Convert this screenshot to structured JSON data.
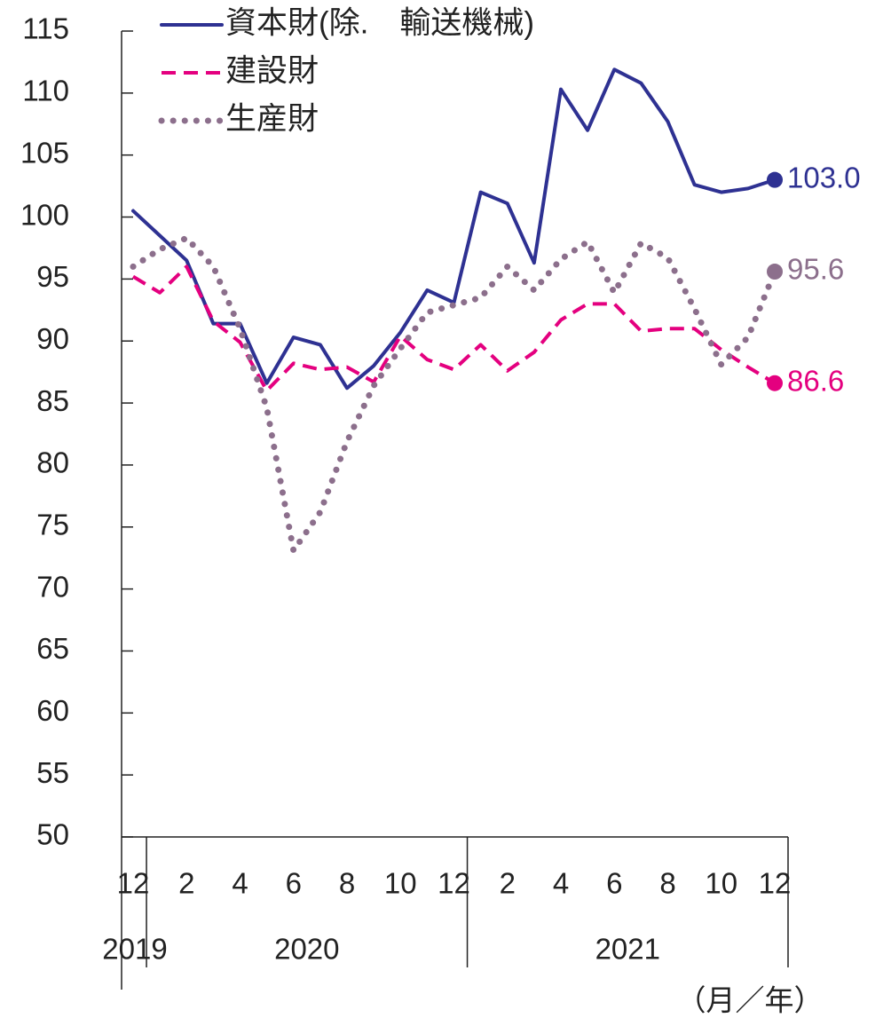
{
  "chart_data": {
    "type": "line",
    "categories": [
      "12",
      null,
      "2",
      null,
      "4",
      null,
      "6",
      null,
      "8",
      null,
      "10",
      null,
      "12",
      null,
      "2",
      null,
      "4",
      null,
      "6",
      null,
      "8",
      null,
      "10",
      null,
      "12"
    ],
    "year_labels": [
      "2019",
      "2020",
      "2021"
    ],
    "x_axis_label": "（月／年）",
    "ylim": [
      50,
      115
    ],
    "yticks": [
      50,
      55,
      60,
      65,
      70,
      75,
      80,
      85,
      90,
      95,
      100,
      105,
      110,
      115
    ],
    "legend": "top-left",
    "series": [
      {
        "name": "資本財(除.　輸送機械)",
        "color": "#2e3192",
        "style": "solid",
        "values": [
          100.5,
          98.5,
          96.5,
          91.4,
          91.4,
          86.6,
          90.3,
          89.7,
          86.2,
          88.0,
          90.7,
          94.1,
          93.1,
          102.0,
          101.1,
          96.3,
          110.3,
          107.0,
          111.9,
          110.8,
          107.7,
          102.6,
          102.0,
          102.3,
          103.0
        ],
        "value_labels": [
          null,
          null,
          null,
          null,
          null,
          null,
          null,
          null,
          null,
          null,
          null,
          null,
          null,
          null,
          null,
          null,
          null,
          null,
          null,
          null,
          null,
          null,
          null,
          null,
          "103.0"
        ]
      },
      {
        "name": "建設財",
        "color": "#e4007f",
        "style": "dashed",
        "values": [
          95.2,
          93.9,
          96.0,
          91.6,
          89.9,
          86.0,
          88.2,
          87.7,
          87.9,
          86.7,
          90.4,
          88.5,
          87.7,
          89.7,
          87.6,
          89.1,
          91.7,
          93.0,
          93.0,
          90.8,
          91.0,
          91.0,
          89.3,
          87.9,
          86.6
        ],
        "value_labels": [
          null,
          null,
          null,
          null,
          null,
          null,
          null,
          null,
          null,
          null,
          null,
          null,
          null,
          null,
          null,
          null,
          null,
          null,
          null,
          null,
          null,
          null,
          null,
          null,
          "86.6"
        ]
      },
      {
        "name": "生産財",
        "color": "#8c6f8c",
        "style": "dotted",
        "values": [
          96.0,
          97.4,
          98.3,
          96.0,
          91.0,
          84.6,
          73.1,
          76.2,
          81.9,
          86.4,
          89.4,
          92.3,
          92.9,
          93.5,
          96.0,
          94.1,
          96.6,
          98.0,
          93.9,
          97.9,
          96.7,
          92.6,
          88.1,
          90.3,
          95.6
        ],
        "value_labels": [
          null,
          null,
          null,
          null,
          null,
          null,
          null,
          null,
          null,
          null,
          null,
          null,
          null,
          null,
          null,
          null,
          null,
          null,
          null,
          null,
          null,
          null,
          null,
          null,
          "95.6"
        ]
      }
    ]
  }
}
